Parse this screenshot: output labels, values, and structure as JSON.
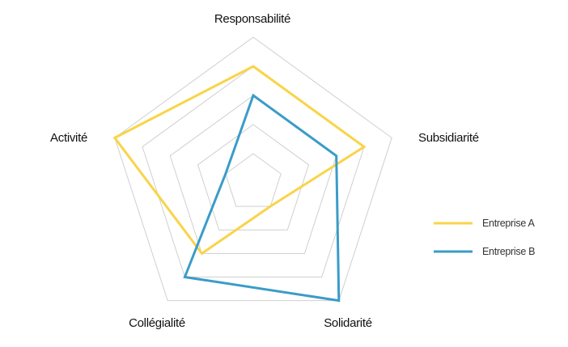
{
  "chart_data": {
    "type": "radar",
    "title": "",
    "axes": [
      "Responsabilité",
      "Subsidiarité",
      "Solidarité",
      "Collégialité",
      "Activité"
    ],
    "range": [
      0,
      5
    ],
    "grid_levels": 5,
    "grid": true,
    "legend_position": "right",
    "series": [
      {
        "name": "Entreprise A",
        "color": "#F9D448",
        "values": [
          4,
          4,
          1,
          3,
          5
        ]
      },
      {
        "name": "Entreprise B",
        "color": "#3A9CC8",
        "values": [
          3,
          3,
          5,
          4,
          1
        ]
      }
    ]
  }
}
